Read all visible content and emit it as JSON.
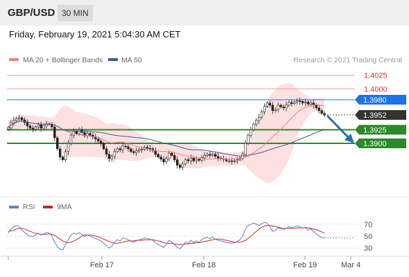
{
  "header": {
    "symbol": "GBP/USD",
    "timeframe": "30 MIN"
  },
  "timestamp": "Friday, February 19, 2021 5:04:30 AM CET",
  "copyright": "Research © 2021 Trading Central",
  "colors": {
    "ma20": "#f08080",
    "ma50": "#3a5a9a",
    "band_fill": "#fde0e0",
    "resistance": "#e53030",
    "support": "#2a8a2a",
    "pivot": "#1a73e8",
    "current": "#333333",
    "arrow": "#2a6fb0",
    "rsi": "#5b7fd8",
    "rsi_ma": "#d62020"
  },
  "chart_data": [
    {
      "type": "candlestick",
      "legend": [
        {
          "name": "MA 20 + Bollinger Bands"
        },
        {
          "name": "MA 50"
        }
      ],
      "x_labels": [
        "Feb 17",
        "Feb 18",
        "Feb 19",
        "Mar 4"
      ],
      "ylim": [
        1.3855,
        1.4045
      ],
      "levels": [
        {
          "label": "1.4025",
          "value": 1.4025,
          "kind": "resistance"
        },
        {
          "label": "1.4000",
          "value": 1.4,
          "kind": "resistance"
        },
        {
          "label": "1.3980",
          "value": 1.398,
          "kind": "pivot"
        },
        {
          "label": "1.3952",
          "value": 1.3952,
          "kind": "current"
        },
        {
          "label": "1.3925",
          "value": 1.3925,
          "kind": "support"
        },
        {
          "label": "1.3900",
          "value": 1.39,
          "kind": "support"
        }
      ],
      "arrow": {
        "from": 1.3952,
        "to": 1.39
      },
      "close": [
        1.3929,
        1.3938,
        1.3942,
        1.3945,
        1.3947,
        1.3943,
        1.3938,
        1.3932,
        1.3928,
        1.3926,
        1.393,
        1.3934,
        1.3928,
        1.3932,
        1.3936,
        1.3935,
        1.393,
        1.391,
        1.389,
        1.3875,
        1.387,
        1.3885,
        1.39,
        1.3915,
        1.3922,
        1.3918,
        1.3925,
        1.392,
        1.3914,
        1.3918,
        1.3915,
        1.3912,
        1.3908,
        1.3904,
        1.39,
        1.389,
        1.388,
        1.3872,
        1.3876,
        1.3885,
        1.389,
        1.3888,
        1.3895,
        1.3894,
        1.389,
        1.3885,
        1.3883,
        1.3886,
        1.3888,
        1.3889,
        1.3893,
        1.3891,
        1.389,
        1.3887,
        1.388,
        1.3875,
        1.3871,
        1.3866,
        1.3872,
        1.3882,
        1.3878,
        1.387,
        1.386,
        1.3856,
        1.3862,
        1.387,
        1.3868,
        1.3873,
        1.3868,
        1.3871,
        1.3869,
        1.3874,
        1.3878,
        1.388,
        1.3878,
        1.388,
        1.3876,
        1.3873,
        1.3872,
        1.3871,
        1.3868,
        1.3868,
        1.3867,
        1.3868,
        1.387,
        1.3873,
        1.388,
        1.39,
        1.3915,
        1.3925,
        1.3935,
        1.3942,
        1.3948,
        1.3958,
        1.3968,
        1.3974,
        1.397,
        1.396,
        1.3962,
        1.397,
        1.3967,
        1.3965,
        1.397,
        1.3975,
        1.3973,
        1.3976,
        1.3978,
        1.3977,
        1.3974,
        1.3976,
        1.3972,
        1.3974,
        1.397,
        1.3965,
        1.396,
        1.3955,
        1.3952
      ]
    },
    {
      "type": "line",
      "legend": [
        {
          "name": "RSI"
        },
        {
          "name": "9MA"
        }
      ],
      "ylim": [
        20,
        80
      ],
      "y_ticks": [
        70,
        50,
        30
      ],
      "rsi": [
        55,
        62,
        66,
        68,
        66,
        60,
        56,
        52,
        50,
        49,
        52,
        55,
        52,
        54,
        56,
        55,
        50,
        40,
        32,
        28,
        27,
        36,
        44,
        52,
        55,
        53,
        56,
        53,
        49,
        52,
        50,
        48,
        46,
        44,
        42,
        38,
        34,
        30,
        33,
        40,
        44,
        42,
        47,
        46,
        44,
        41,
        40,
        42,
        44,
        45,
        47,
        46,
        45,
        43,
        39,
        36,
        34,
        31,
        36,
        43,
        40,
        36,
        31,
        29,
        34,
        40,
        38,
        43,
        39,
        42,
        40,
        44,
        47,
        48,
        46,
        48,
        45,
        43,
        42,
        41,
        39,
        39,
        38,
        39,
        41,
        44,
        50,
        62,
        68,
        70,
        72,
        70,
        68,
        71,
        73,
        72,
        66,
        58,
        60,
        64,
        62,
        61,
        63,
        66,
        64,
        66,
        67,
        66,
        63,
        65,
        60,
        62,
        58,
        54,
        50,
        48,
        47
      ],
      "rsi_ma": [
        58,
        59,
        60,
        62,
        63,
        63,
        62,
        60,
        58,
        56,
        55,
        54,
        53,
        53,
        53,
        54,
        53,
        51,
        48,
        45,
        42,
        40,
        39,
        40,
        42,
        44,
        47,
        50,
        52,
        52,
        52,
        51,
        50,
        49,
        47,
        45,
        43,
        41,
        39,
        38,
        38,
        39,
        40,
        41,
        42,
        42,
        42,
        43,
        43,
        43,
        44,
        44,
        44,
        44,
        43,
        42,
        41,
        39,
        38,
        38,
        38,
        37,
        36,
        36,
        36,
        37,
        37,
        38,
        38,
        39,
        39,
        40,
        41,
        42,
        43,
        44,
        45,
        45,
        45,
        44,
        43,
        42,
        41,
        40,
        40,
        40,
        41,
        43,
        46,
        50,
        54,
        58,
        62,
        65,
        67,
        68,
        68,
        67,
        66,
        65,
        64,
        63,
        63,
        63,
        63,
        63,
        64,
        64,
        64,
        64,
        64,
        63,
        62,
        61,
        59,
        57,
        55
      ]
    }
  ]
}
